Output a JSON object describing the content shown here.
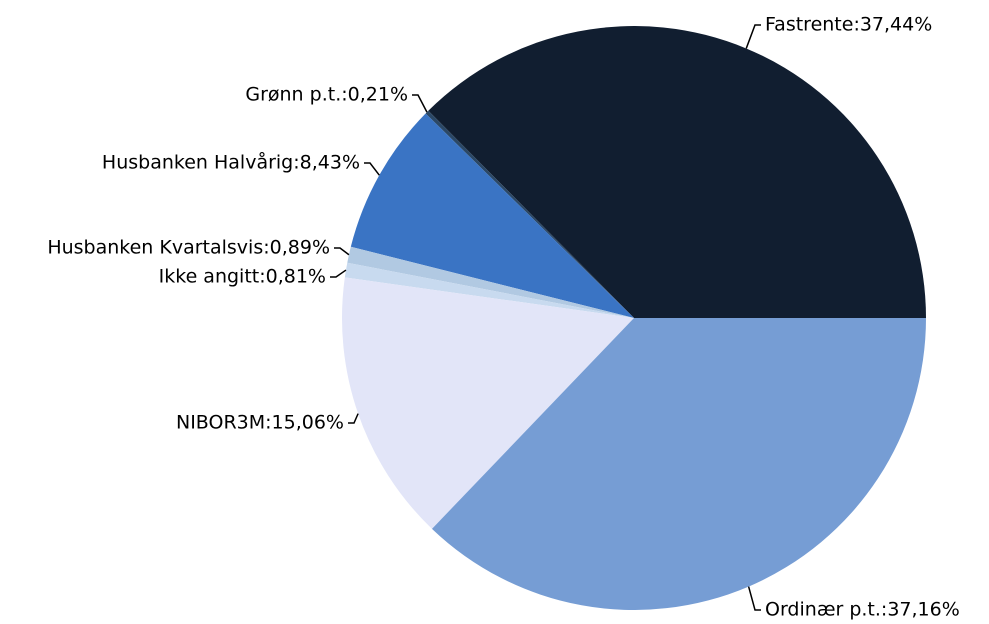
{
  "chart_data": {
    "type": "pie",
    "values": [
      37.44,
      0.21,
      8.43,
      0.89,
      0.81,
      15.06,
      37.16
    ],
    "value_labels": [
      "Fastrente:37,44%",
      "Grønn p.t.:0,21%",
      "Husbanken Halvårig:8,43%",
      "Husbanken Kvartalsvis:0,89%",
      "Ikke angitt:0,81%",
      "NIBOR3M:15,06%",
      "Ordinær p.t.:37,16%"
    ],
    "colors": [
      "#111e30",
      "#2b4866",
      "#3a74c4",
      "#b1c9e2",
      "#c8daef",
      "#e2e5f8",
      "#769dd4"
    ]
  }
}
